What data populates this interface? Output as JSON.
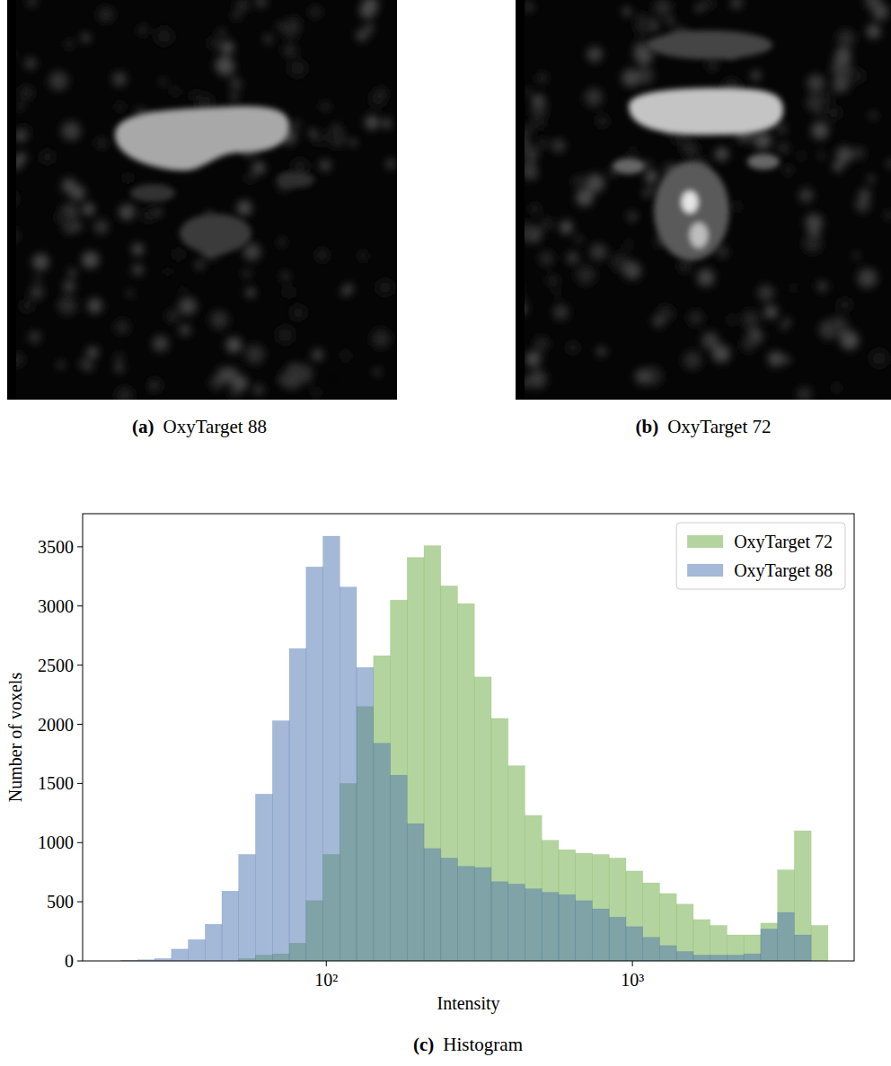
{
  "figure": {
    "panels": [
      {
        "label": "(a)",
        "caption": "OxyTarget 88"
      },
      {
        "label": "(b)",
        "caption": "OxyTarget 72"
      },
      {
        "label": "(c)",
        "caption": "Histogram"
      }
    ]
  },
  "chart_data": {
    "type": "histogram",
    "x_label": "Intensity",
    "y_label": "Number of voxels",
    "log": "x",
    "grid": false,
    "legend": "upper right",
    "xlim": [
      16,
      5300
    ],
    "xticks": [
      {
        "value": 100,
        "label": "10²"
      },
      {
        "value": 1000,
        "label": "10³"
      }
    ],
    "ylim": [
      0,
      3780
    ],
    "yticks": [
      0,
      500,
      1000,
      1500,
      2000,
      2500,
      3000,
      3500
    ],
    "bins": [
      21.3,
      24.2,
      27.5,
      31.2,
      35.4,
      40.2,
      45.6,
      51.7,
      58.7,
      66.7,
      75.7,
      85.9,
      97.5,
      110.7,
      125.6,
      142.6,
      161.8,
      183.7,
      208.5,
      236.6,
      268.5,
      304.8,
      345.9,
      392.6,
      445.6,
      505.8,
      574.1,
      651.6,
      739.5,
      839.3,
      952.6,
      1081.2,
      1227.2,
      1392.9,
      1580.9,
      1794.3,
      2036.6,
      2311.5,
      2623.6,
      2977.8,
      3379.8,
      3836.1,
      4353.9
    ],
    "series": [
      {
        "name": "OxyTarget 72",
        "color": "#6aaa3f",
        "values": [
          0,
          0,
          0,
          0,
          0,
          0,
          0,
          20,
          50,
          60,
          150,
          510,
          900,
          1500,
          2150,
          2580,
          3050,
          3410,
          3510,
          3170,
          3020,
          2400,
          2050,
          1650,
          1230,
          1020,
          940,
          910,
          900,
          870,
          760,
          660,
          570,
          480,
          350,
          300,
          220,
          220,
          320,
          770,
          1100,
          300
        ]
      },
      {
        "name": "OxyTarget 88",
        "color": "#4a72b0",
        "values": [
          5,
          10,
          20,
          100,
          180,
          310,
          590,
          900,
          1410,
          2030,
          2640,
          3330,
          3590,
          3160,
          2480,
          1840,
          1570,
          1160,
          950,
          870,
          800,
          790,
          670,
          650,
          610,
          580,
          560,
          510,
          440,
          370,
          290,
          200,
          130,
          80,
          50,
          50,
          50,
          60,
          270,
          410,
          220,
          0
        ]
      }
    ]
  }
}
